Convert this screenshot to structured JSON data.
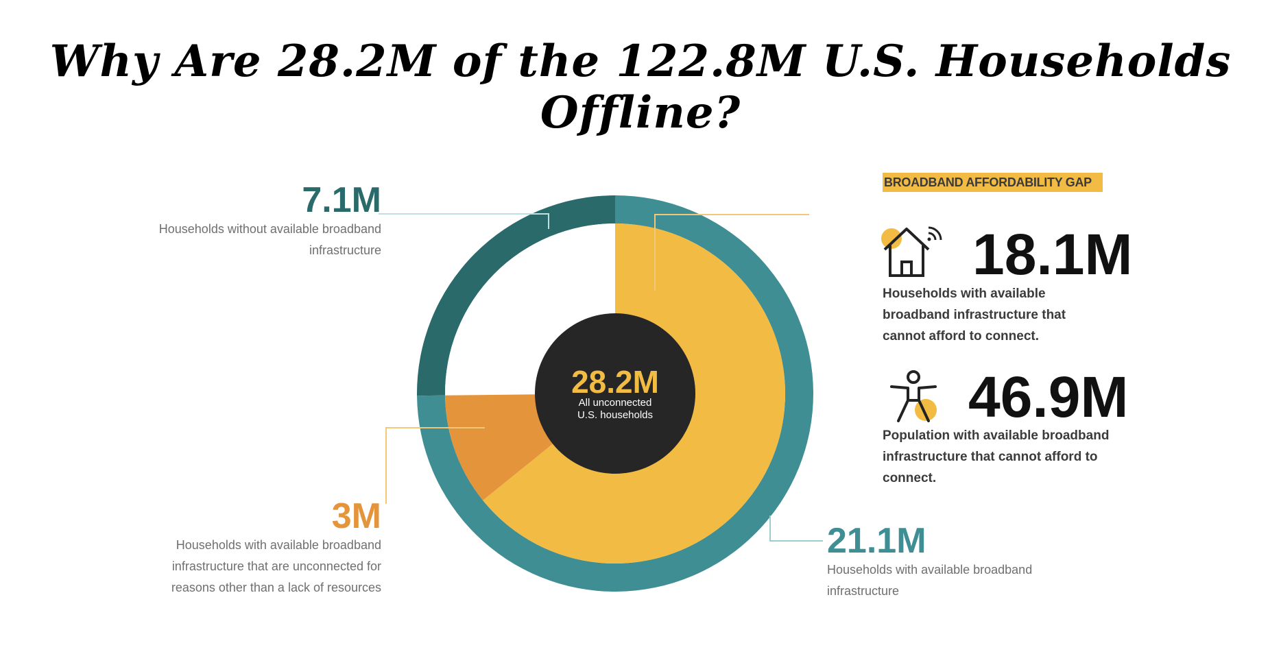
{
  "title": "Why Are 28.2M of the 122.8M U.S. Households Offline?",
  "colors": {
    "outer_dark_teal": "#2b6a6a",
    "outer_teal": "#3f8e93",
    "yellow": "#f2bb43",
    "orange": "#e4943b",
    "center": "#262626",
    "white": "#ffffff"
  },
  "chart_data": {
    "type": "pie",
    "title": "Why Are 28.2M of the 122.8M U.S. Households Offline?",
    "center_label": {
      "value": "28.2M",
      "caption_line1": "All unconnected",
      "caption_line2": "U.S. households"
    },
    "outer_ring": [
      {
        "value": 7.1,
        "label": "7.1M",
        "description": "Households without available broadband infrastructure",
        "color": "#2b6a6a"
      },
      {
        "value": 21.1,
        "label": "21.1M",
        "description": "Households with available broadband infrastructure",
        "color": "#3f8e93"
      }
    ],
    "inner_slices": [
      {
        "value": 7.1,
        "label": "",
        "color": "#ffffff"
      },
      {
        "value": 18.1,
        "label": "18.1M",
        "description": "Households with available broadband infrastructure that cannot afford to connect.",
        "color": "#f2bb43"
      },
      {
        "value": 3,
        "label": "3M",
        "description": "Households with available broadband infrastructure that are unconnected for reasons other than a lack of resources",
        "color": "#e4943b"
      }
    ]
  },
  "labels": {
    "m71": {
      "value": "7.1M",
      "line1": "Households without available broadband",
      "line2": "infrastructure"
    },
    "m3": {
      "value": "3M",
      "line1": "Households with available broadband",
      "line2": "infrastructure that are unconnected for",
      "line3": "reasons other than a lack of resources"
    },
    "m211": {
      "value": "21.1M",
      "line1": "Households with available broadband",
      "line2": "infrastructure"
    }
  },
  "affordability": {
    "badge": "BROADBAND AFFORDABILITY GAP",
    "stat1": {
      "value": "18.1M",
      "line1": "Households with available",
      "line2": "broadband infrastructure that",
      "line3": "cannot afford to connect.",
      "icon": "house-wifi-icon"
    },
    "stat2": {
      "value": "46.9M",
      "line1": "Population with available broadband",
      "line2": "infrastructure that cannot afford to",
      "line3": "connect.",
      "icon": "person-icon"
    }
  }
}
